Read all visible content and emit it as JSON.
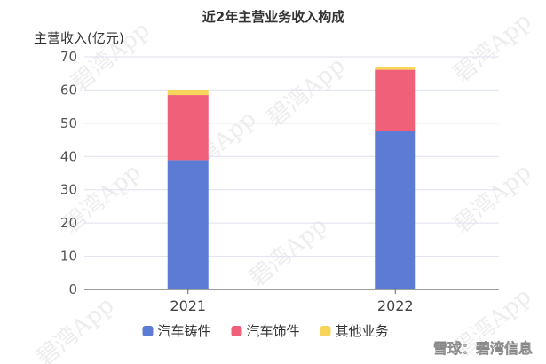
{
  "chart_data": {
    "type": "bar",
    "stacked": true,
    "title": "近2年主营业务收入构成",
    "ylabel": "主营收入(亿元)",
    "xlabel": "",
    "categories": [
      "2021",
      "2022"
    ],
    "ylim": [
      0,
      70
    ],
    "yticks": [
      0,
      10,
      20,
      30,
      40,
      50,
      60,
      70
    ],
    "grid": true,
    "legend_position": "bottom",
    "series": [
      {
        "name": "汽车铸件",
        "color": "#5b7bd5",
        "values": [
          38.9,
          47.8
        ]
      },
      {
        "name": "汽车饰件",
        "color": "#f06078",
        "values": [
          19.6,
          18.3
        ]
      },
      {
        "name": "其他业务",
        "color": "#f7d55a",
        "values": [
          1.6,
          0.9
        ]
      }
    ]
  },
  "watermark": {
    "text": "碧湾App"
  },
  "credit": {
    "text": "雪球：碧湾信息"
  }
}
